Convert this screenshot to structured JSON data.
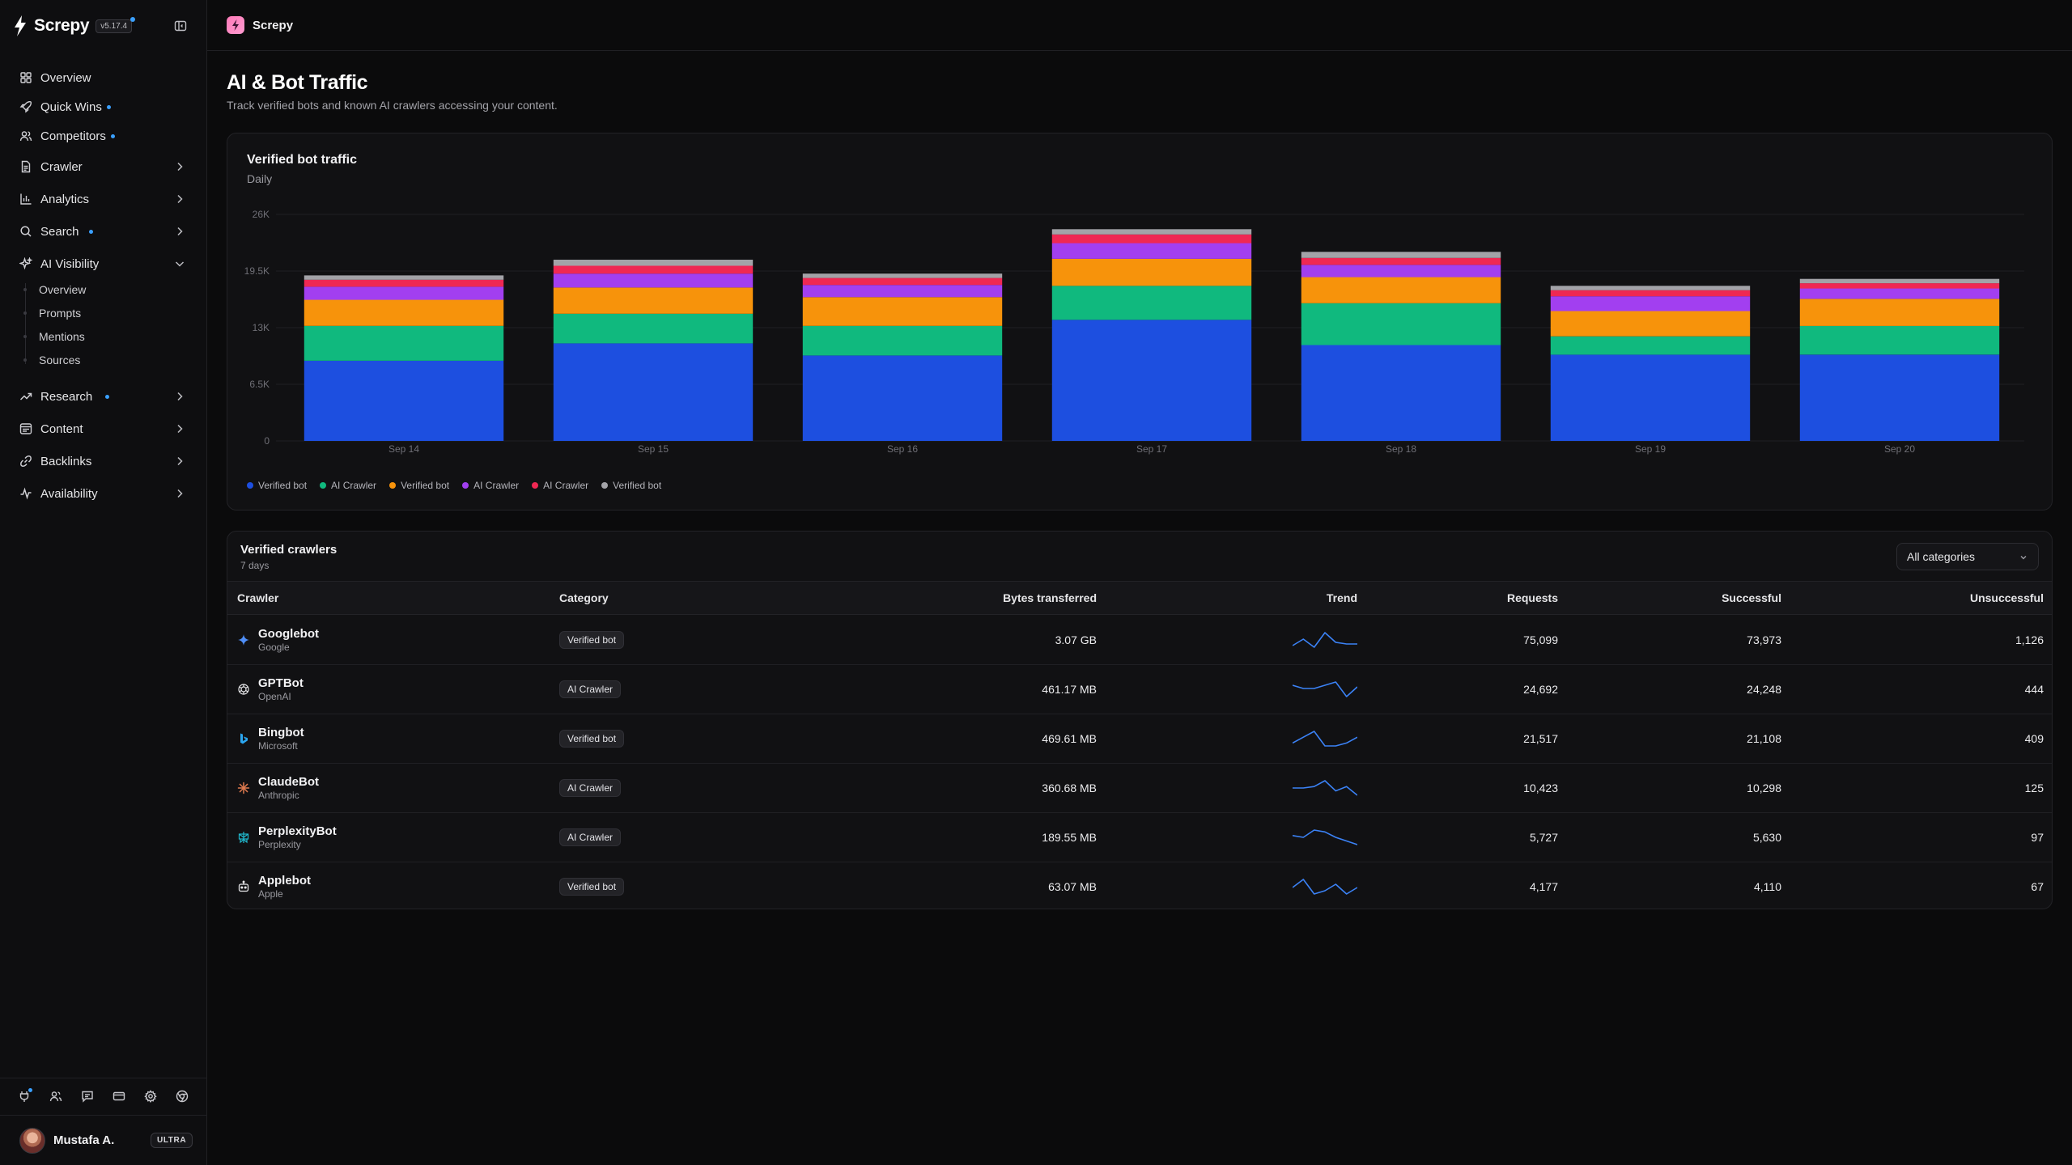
{
  "app": {
    "brand": "Screpy",
    "version": "v5.17.4"
  },
  "sidebar": {
    "items": [
      {
        "label": "Overview",
        "icon": "grid-icon"
      },
      {
        "label": "Quick Wins",
        "icon": "rocket-icon",
        "dot": true
      },
      {
        "label": "Competitors",
        "icon": "users-icon",
        "dot": true
      },
      {
        "label": "Crawler",
        "icon": "file-icon",
        "chevron": "right"
      },
      {
        "label": "Analytics",
        "icon": "bar-chart-icon",
        "chevron": "right"
      },
      {
        "label": "Search",
        "icon": "search-icon",
        "chevron": "right",
        "dot": true
      },
      {
        "label": "AI Visibility",
        "icon": "sparkle-icon",
        "chevron": "down"
      },
      {
        "label": "Research",
        "icon": "trend-icon",
        "chevron": "right",
        "dot": true
      },
      {
        "label": "Content",
        "icon": "layout-icon",
        "chevron": "right"
      },
      {
        "label": "Backlinks",
        "icon": "link-icon",
        "chevron": "right"
      },
      {
        "label": "Availability",
        "icon": "activity-icon",
        "chevron": "right"
      }
    ],
    "ai_visibility_sub": [
      "Overview",
      "Prompts",
      "Mentions",
      "Sources"
    ],
    "bottom_icons": [
      "plug-icon",
      "users-icon",
      "chat-icon",
      "card-icon",
      "gear-icon",
      "chrome-icon"
    ]
  },
  "user": {
    "name": "Mustafa A.",
    "plan": "ULTRA"
  },
  "topbar": {
    "site": "Screpy"
  },
  "page": {
    "title": "AI & Bot Traffic",
    "subtitle": "Track verified bots and known AI crawlers accessing your content."
  },
  "chart_card": {
    "title": "Verified bot traffic",
    "subtitle": "Daily"
  },
  "chart_data": {
    "type": "bar",
    "stacked": true,
    "categories": [
      "Sep 14",
      "Sep 15",
      "Sep 16",
      "Sep 17",
      "Sep 18",
      "Sep 19",
      "Sep 20"
    ],
    "y_ticks": [
      "0",
      "6.5K",
      "13K",
      "19.5K",
      "26K"
    ],
    "ylim": [
      0,
      26000
    ],
    "grid": true,
    "legend_position": "bottom-left",
    "series": [
      {
        "name": "Verified bot",
        "color": "#1d4fe0",
        "values": [
          9200,
          11200,
          9800,
          13900,
          11000,
          9900,
          9900
        ]
      },
      {
        "name": "AI Crawler",
        "color": "#10b97e",
        "values": [
          4000,
          3400,
          3400,
          3900,
          4800,
          2100,
          3300
        ]
      },
      {
        "name": "Verified bot",
        "color": "#f7930b",
        "values": [
          3000,
          3000,
          3300,
          3100,
          3000,
          2900,
          3100
        ]
      },
      {
        "name": "AI Crawler",
        "color": "#a23ff0",
        "values": [
          1500,
          1600,
          1400,
          1800,
          1400,
          1700,
          1200
        ]
      },
      {
        "name": "AI Crawler",
        "color": "#ef2853",
        "values": [
          800,
          900,
          800,
          1000,
          800,
          700,
          600
        ]
      },
      {
        "name": "Verified bot",
        "color": "#a3a3a8",
        "values": [
          500,
          700,
          500,
          600,
          700,
          500,
          500
        ]
      }
    ]
  },
  "table": {
    "title": "Verified crawlers",
    "subtitle": "7 days",
    "filter": "All categories",
    "columns": [
      "Crawler",
      "Category",
      "Bytes transferred",
      "Trend",
      "Requests",
      "Successful",
      "Unsuccessful"
    ],
    "rows": [
      {
        "name": "Googlebot",
        "org": "Google",
        "icon": "google-spark-icon",
        "category": "Verified bot",
        "bytes": "3.07 GB",
        "requests": "75,099",
        "successful": "73,973",
        "unsuccessful": "1,126",
        "trend": [
          4,
          8,
          3,
          12,
          6,
          5,
          5
        ]
      },
      {
        "name": "GPTBot",
        "org": "OpenAI",
        "icon": "openai-icon",
        "category": "AI Crawler",
        "bytes": "461.17 MB",
        "requests": "24,692",
        "successful": "24,248",
        "unsuccessful": "444",
        "trend": [
          10,
          8,
          8,
          10,
          12,
          3,
          9
        ]
      },
      {
        "name": "Bingbot",
        "org": "Microsoft",
        "icon": "bing-icon",
        "category": "Verified bot",
        "bytes": "469.61 MB",
        "requests": "21,517",
        "successful": "21,108",
        "unsuccessful": "409",
        "trend": [
          5,
          9,
          13,
          3,
          3,
          5,
          9
        ]
      },
      {
        "name": "ClaudeBot",
        "org": "Anthropic",
        "icon": "claude-icon",
        "category": "AI Crawler",
        "bytes": "360.68 MB",
        "requests": "10,423",
        "successful": "10,298",
        "unsuccessful": "125",
        "trend": [
          8,
          8,
          9,
          13,
          6,
          9,
          3
        ]
      },
      {
        "name": "PerplexityBot",
        "org": "Perplexity",
        "icon": "perplexity-icon",
        "category": "AI Crawler",
        "bytes": "189.55 MB",
        "requests": "5,727",
        "successful": "5,630",
        "unsuccessful": "97",
        "trend": [
          9,
          8,
          12,
          11,
          8,
          6,
          4
        ]
      },
      {
        "name": "Applebot",
        "org": "Apple",
        "icon": "apple-bot-icon",
        "category": "Verified bot",
        "bytes": "63.07 MB",
        "requests": "4,177",
        "successful": "4,110",
        "unsuccessful": "67",
        "trend": [
          8,
          13,
          4,
          6,
          10,
          4,
          8
        ]
      }
    ]
  },
  "colors": {
    "accent": "#3aa0ff",
    "trend_line": "#3b82f6"
  }
}
